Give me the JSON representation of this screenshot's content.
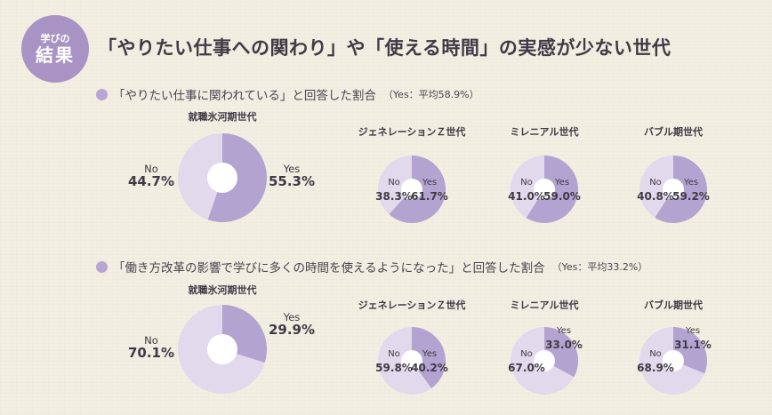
{
  "badge": {
    "line1": "学びの",
    "line2": "結果"
  },
  "title": "「やりたい仕事への関わり」や「使える時間」の実感が少ない世代",
  "colors": {
    "yes": "#b3a3d1",
    "no": "#e3d9ec",
    "center": "#ffffff"
  },
  "chart_data": [
    {
      "type": "pie",
      "question": "「やりたい仕事に関われている」と回答した割合",
      "average": "（Yes：平均58.9%）",
      "groups": [
        {
          "name": "就職氷河期世代",
          "yes_label": "Yes",
          "no_label": "No",
          "yes_pct": "55.3%",
          "no_pct": "44.7%",
          "yes": 55.3,
          "no": 44.7
        },
        {
          "name": "ジェネレーションＺ世代",
          "yes_label": "Yes",
          "no_label": "No",
          "yes_pct": "61.7%",
          "no_pct": "38.3%",
          "yes": 61.7,
          "no": 38.3
        },
        {
          "name": "ミレニアル世代",
          "yes_label": "Yes",
          "no_label": "No",
          "yes_pct": "59.0%",
          "no_pct": "41.0%",
          "yes": 59.0,
          "no": 41.0
        },
        {
          "name": "バブル期世代",
          "yes_label": "Yes",
          "no_label": "No",
          "yes_pct": "59.2%",
          "no_pct": "40.8%",
          "yes": 59.2,
          "no": 40.8
        }
      ]
    },
    {
      "type": "pie",
      "question": "「働き方改革の影響で学びに多くの時間を使えるようになった」と回答した割合",
      "average": "（Yes：平均33.2%）",
      "groups": [
        {
          "name": "就職氷河期世代",
          "yes_label": "Yes",
          "no_label": "No",
          "yes_pct": "29.9%",
          "no_pct": "70.1%",
          "yes": 29.9,
          "no": 70.1
        },
        {
          "name": "ジェネレーションＺ世代",
          "yes_label": "Yes",
          "no_label": "No",
          "yes_pct": "40.2%",
          "no_pct": "59.8%",
          "yes": 40.2,
          "no": 59.8
        },
        {
          "name": "ミレニアル世代",
          "yes_label": "Yes",
          "no_label": "No",
          "yes_pct": "33.0%",
          "no_pct": "67.0%",
          "yes": 33.0,
          "no": 67.0
        },
        {
          "name": "バブル期世代",
          "yes_label": "Yes",
          "no_label": "No",
          "yes_pct": "31.1%",
          "no_pct": "68.9%",
          "yes": 31.1,
          "no": 68.9
        }
      ]
    }
  ]
}
